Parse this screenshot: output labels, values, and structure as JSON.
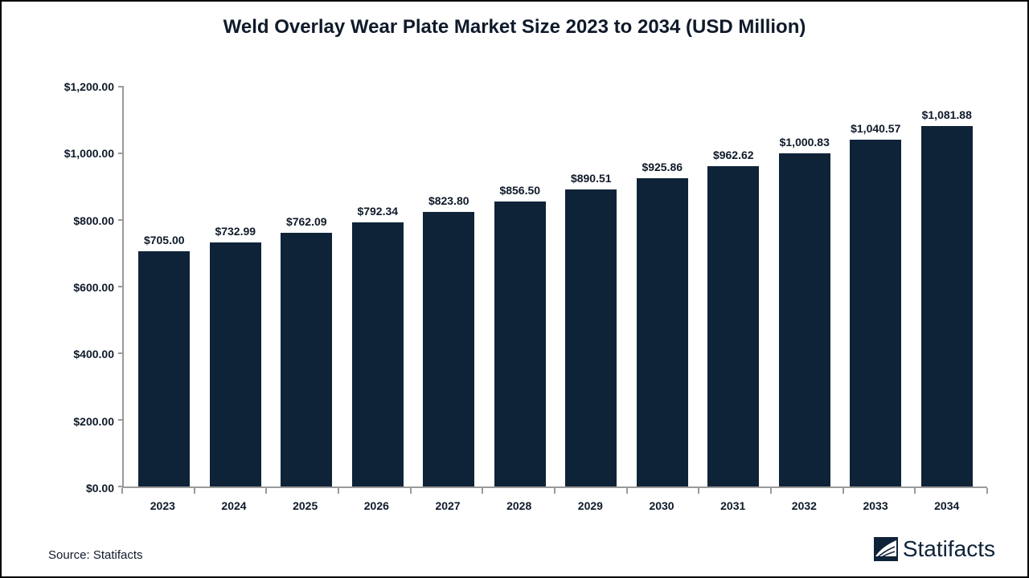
{
  "chart": {
    "type": "bar",
    "title": "Weld Overlay Wear Plate Market Size 2023 to 2034 (USD Million)",
    "title_fontsize": 24,
    "title_color": "#0f1a2a",
    "background_color": "#ffffff",
    "border_color": "#000000",
    "axis_color": "#9a9a9a",
    "tick_label_color": "#0f1a2a",
    "tick_label_fontsize": 14,
    "x_label_fontsize": 14,
    "bar_label_fontsize": 14,
    "bar_color": "#0f2338",
    "bar_width": 0.72,
    "ylim": [
      0,
      1200
    ],
    "ytick_step": 200,
    "yticks": [
      {
        "value": 0,
        "label": "$0.00"
      },
      {
        "value": 200,
        "label": "$200.00"
      },
      {
        "value": 400,
        "label": "$400.00"
      },
      {
        "value": 600,
        "label": "$600.00"
      },
      {
        "value": 800,
        "label": "$800.00"
      },
      {
        "value": 1000,
        "label": "$1,000.00"
      },
      {
        "value": 1200,
        "label": "$1,200.00"
      }
    ],
    "categories": [
      "2023",
      "2024",
      "2025",
      "2026",
      "2027",
      "2028",
      "2029",
      "2030",
      "2031",
      "2032",
      "2033",
      "2034"
    ],
    "values": [
      705.0,
      732.99,
      762.09,
      792.34,
      823.8,
      856.5,
      890.51,
      925.86,
      962.62,
      1000.83,
      1040.57,
      1081.88
    ],
    "value_labels": [
      "$705.00",
      "$732.99",
      "$762.09",
      "$792.34",
      "$823.80",
      "$856.50",
      "$890.51",
      "$925.86",
      "$962.62",
      "$1,000.83",
      "$1,040.57",
      "$1,081.88"
    ]
  },
  "footer": {
    "source": "Source: Statifacts",
    "source_fontsize": 15,
    "brand_name": "Statifacts",
    "brand_fontsize": 28,
    "brand_color": "#0f2338"
  }
}
